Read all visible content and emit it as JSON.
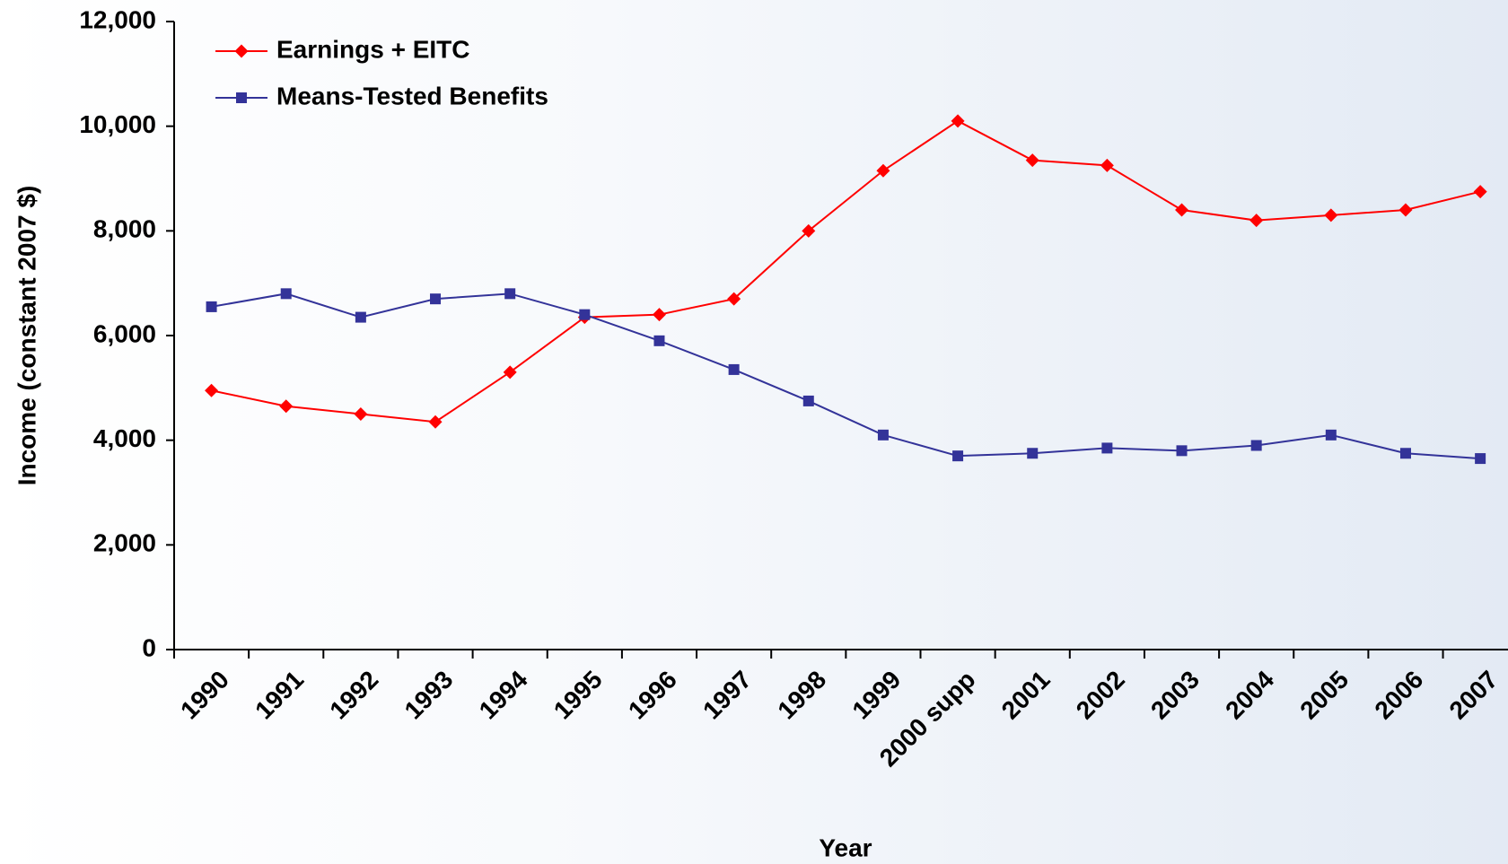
{
  "chart_data": {
    "type": "line",
    "xlabel": "Year",
    "ylabel": "Income (constant 2007 $)",
    "categories": [
      "1990",
      "1991",
      "1992",
      "1993",
      "1994",
      "1995",
      "1996",
      "1997",
      "1998",
      "1999",
      "2000 supp",
      "2001",
      "2002",
      "2003",
      "2004",
      "2005",
      "2006",
      "2007"
    ],
    "series": [
      {
        "name": "Earnings + EITC",
        "color": "#ff0000",
        "marker": "diamond",
        "values": [
          4950,
          4650,
          4500,
          4350,
          5300,
          6350,
          6400,
          6700,
          8000,
          9150,
          10100,
          9350,
          9250,
          8400,
          8200,
          8300,
          8400,
          8750
        ]
      },
      {
        "name": "Means-Tested Benefits",
        "color": "#333399",
        "marker": "square",
        "values": [
          6550,
          6800,
          6350,
          6700,
          6800,
          6400,
          5900,
          5350,
          4750,
          4100,
          3700,
          3750,
          3850,
          3800,
          3900,
          4100,
          3750,
          3650
        ]
      }
    ],
    "ylim": [
      0,
      12000
    ],
    "yticks": [
      0,
      {
        "value": 2000,
        "label": "2,000"
      },
      {
        "value": 4000,
        "label": "4,000"
      },
      {
        "value": 6000,
        "label": "6,000"
      },
      {
        "value": 8000,
        "label": "8,000"
      },
      {
        "value": 10000,
        "label": "10,000"
      },
      {
        "value": 12000,
        "label": "12,000"
      }
    ],
    "legend": "top-left",
    "grid": false
  }
}
